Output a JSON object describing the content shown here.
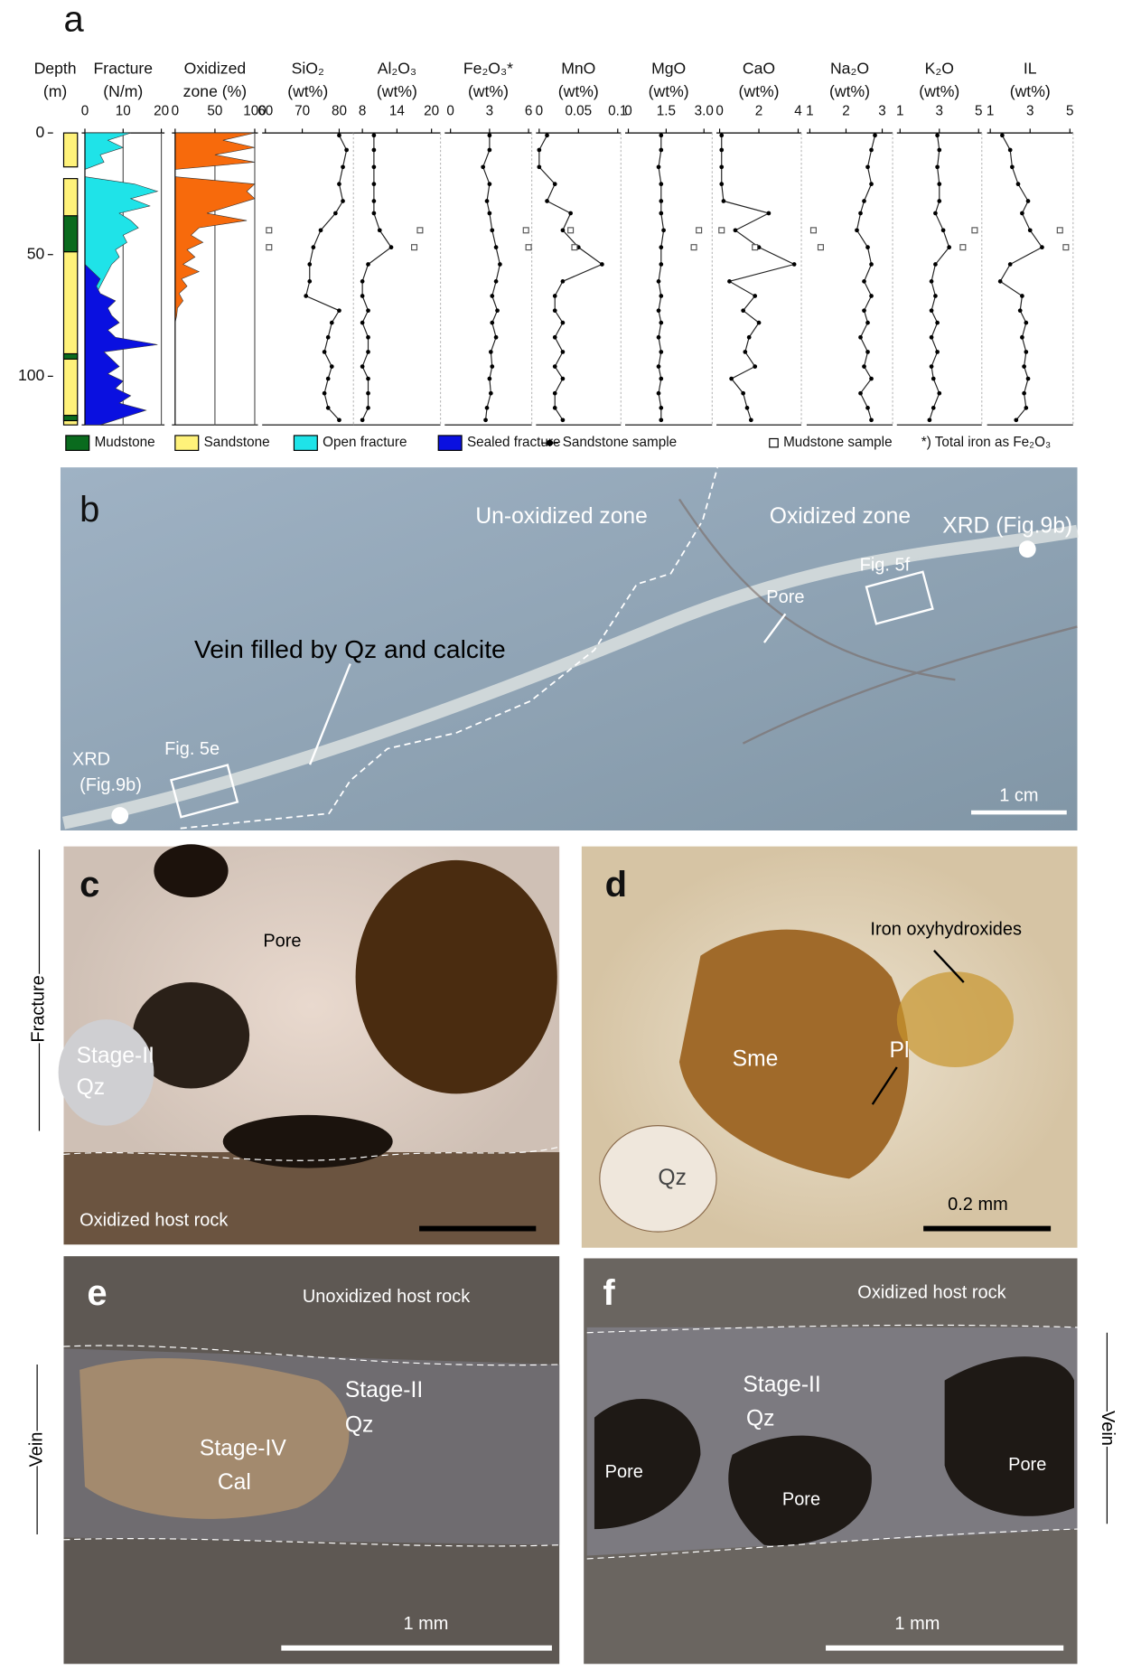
{
  "panel_labels": [
    "a",
    "b",
    "c",
    "d",
    "e",
    "f"
  ],
  "sandstone_depth": [
    1,
    7,
    14,
    21,
    28,
    33,
    40,
    47,
    54,
    61,
    67,
    73,
    78,
    84,
    90,
    96,
    101,
    107,
    113,
    118
  ],
  "mudstone_depth": [
    40,
    47
  ],
  "profile_depth": [
    0,
    3,
    6,
    9,
    12,
    15,
    18,
    21,
    24,
    27,
    30,
    33,
    36,
    39,
    42,
    45,
    48,
    51,
    54,
    57,
    60,
    63,
    66,
    69,
    72,
    75,
    78,
    81,
    84,
    87,
    90,
    93,
    96,
    99,
    102,
    105,
    108,
    111,
    114,
    117,
    120
  ],
  "depth_axis": {
    "title": "Depth",
    "unit": "(m)",
    "ylim": [
      0,
      120
    ],
    "yticks": [
      0,
      50,
      100
    ]
  },
  "chart_data": [
    {
      "type": "area",
      "title": "Fracture",
      "unit": "(N/m)",
      "xlim": [
        0,
        20
      ],
      "xticks": [
        0,
        10,
        20
      ],
      "series": [
        {
          "name": "Open fracture",
          "color": "#1fe3e8",
          "values": [
            12,
            6,
            10,
            4,
            5,
            0,
            0,
            13,
            19,
            12,
            17,
            9,
            12,
            14,
            10,
            11,
            8,
            9,
            7,
            6,
            5,
            4,
            3,
            2,
            1,
            0,
            0,
            0,
            0,
            0,
            0,
            0,
            0,
            0,
            0,
            0,
            0,
            0,
            0,
            0,
            0
          ]
        },
        {
          "name": "Sealed fracture",
          "color": "#0a10e0",
          "values": [
            0,
            0,
            0,
            0,
            0,
            0,
            0,
            0,
            0,
            0,
            0,
            0,
            0,
            0,
            0,
            0,
            0,
            0,
            0,
            2,
            4,
            3,
            4,
            8,
            6,
            7,
            9,
            6,
            8,
            19,
            5,
            7,
            9,
            6,
            10,
            8,
            12,
            9,
            16,
            10,
            4
          ]
        }
      ]
    },
    {
      "type": "area",
      "title": "Oxidized",
      "unit": "zone (%)",
      "xlim": [
        0,
        100
      ],
      "xticks": [
        0,
        50,
        100
      ],
      "series": [
        {
          "name": "Oxidized zone",
          "color": "#f76a0c",
          "values": [
            100,
            60,
            100,
            50,
            100,
            0,
            0,
            100,
            90,
            100,
            70,
            40,
            90,
            30,
            20,
            35,
            15,
            25,
            10,
            30,
            8,
            15,
            5,
            10,
            3,
            2,
            0,
            0,
            0,
            0,
            0,
            0,
            0,
            0,
            0,
            0,
            0,
            0,
            0,
            0,
            0
          ]
        }
      ]
    },
    {
      "type": "profile",
      "title": "SiO₂",
      "unit": "(wt%)",
      "xlim": [
        60,
        83
      ],
      "xticks": [
        60,
        70,
        80
      ],
      "values": [
        80,
        82,
        81,
        80,
        81,
        79,
        75,
        73,
        72,
        72,
        71,
        80,
        78,
        77,
        76,
        78,
        77,
        76,
        77,
        80
      ],
      "mudstone_values": [
        61,
        61
      ]
    },
    {
      "type": "profile",
      "title": "Al₂O₃",
      "unit": "(wt%)",
      "xlim": [
        7,
        21
      ],
      "xticks": [
        8,
        14,
        20
      ],
      "values": [
        10,
        10,
        10,
        10,
        10,
        10,
        11,
        13,
        9,
        8,
        8,
        9,
        8,
        9,
        9,
        8,
        9,
        9,
        9,
        8
      ],
      "mudstone_values": [
        18,
        17
      ]
    },
    {
      "type": "profile",
      "title": "Fe₂O₃*",
      "unit": "(wt%)",
      "xlim": [
        -0.2,
        6
      ],
      "xticks": [
        0,
        3,
        6
      ],
      "values": [
        3,
        3,
        2.5,
        3,
        2.8,
        3,
        3.2,
        3.5,
        3.8,
        3.5,
        3.2,
        3.6,
        3.2,
        3.5,
        3.1,
        3.2,
        3,
        3.1,
        2.8,
        2.7
      ],
      "mudstone_values": [
        5.8,
        6
      ]
    },
    {
      "type": "profile",
      "title": "MnO",
      "unit": "(wt%)",
      "xlim": [
        0,
        0.1
      ],
      "xticks": [
        0,
        0.05,
        0.1
      ],
      "values": [
        0.01,
        0,
        0,
        0.02,
        0.01,
        0.04,
        0.03,
        0.05,
        0.08,
        0.03,
        0.02,
        0.02,
        0.03,
        0.02,
        0.03,
        0.02,
        0.03,
        0.02,
        0.02,
        0.03
      ],
      "mudstone_values": [
        0.04,
        0.045
      ]
    },
    {
      "type": "profile",
      "title": "MgO",
      "unit": "(wt%)",
      "xlim": [
        0,
        3.2
      ],
      "xticks": [
        0,
        1.5,
        {
          "value": 3,
          "label": "3.0"
        }
      ],
      "values": [
        1.3,
        1.3,
        1.2,
        1.3,
        1.3,
        1.3,
        1.4,
        1.3,
        1.3,
        1.2,
        1.3,
        1.2,
        1.3,
        1.2,
        1.3,
        1.2,
        1.3,
        1.2,
        1.3,
        1.3
      ],
      "mudstone_values": [
        2.8,
        2.6
      ]
    },
    {
      "type": "profile",
      "title": "CaO",
      "unit": "(wt%)",
      "xlim": [
        0,
        4
      ],
      "xticks": [
        0,
        2,
        4
      ],
      "values": [
        0.1,
        0.1,
        0.1,
        0.1,
        0.2,
        2.5,
        0.8,
        2,
        3.8,
        0.5,
        1.8,
        1.2,
        2,
        1.5,
        1.3,
        1.8,
        0.6,
        1.2,
        1.4,
        1.6
      ],
      "mudstone_values": [
        0.1,
        1.8
      ]
    },
    {
      "type": "profile",
      "title": "Na₂O",
      "unit": "(wt%)",
      "xlim": [
        1,
        3.2
      ],
      "xticks": [
        1,
        2,
        3
      ],
      "values": [
        2.8,
        2.7,
        2.6,
        2.7,
        2.5,
        2.4,
        2.3,
        2.6,
        2.7,
        2.5,
        2.7,
        2.5,
        2.6,
        2.4,
        2.6,
        2.5,
        2.7,
        2.4,
        2.6,
        2.7
      ],
      "mudstone_values": [
        1.1,
        1.3
      ]
    },
    {
      "type": "profile",
      "title": "K₂O",
      "unit": "(wt%)",
      "xlim": [
        1,
        5
      ],
      "xticks": [
        1,
        3,
        5
      ],
      "values": [
        2.9,
        3,
        2.9,
        3,
        3,
        2.8,
        3.2,
        3.5,
        2.8,
        2.6,
        2.8,
        2.6,
        2.9,
        2.6,
        2.9,
        2.6,
        2.7,
        3,
        2.7,
        2.5
      ],
      "mudstone_values": [
        4.8,
        4.2
      ]
    },
    {
      "type": "profile",
      "title": "IL",
      "unit": "(wt%)",
      "xlim": [
        1,
        5
      ],
      "xticks": [
        1,
        3,
        5
      ],
      "values": [
        1.6,
        2,
        2.1,
        2.4,
        2.9,
        2.6,
        3,
        3.6,
        2,
        1.5,
        2.6,
        2.5,
        2.8,
        2.6,
        2.8,
        2.7,
        2.9,
        2.7,
        2.8,
        2.3
      ],
      "mudstone_values": [
        4.5,
        4.8
      ]
    }
  ],
  "legend": [
    {
      "name": "Mudstone",
      "color": "#0a6b1e"
    },
    {
      "name": "Sandstone",
      "color": "#fff27a"
    },
    {
      "name": "Open fracture",
      "color": "#1fe3e8"
    },
    {
      "name": "Sealed fracture",
      "color": "#0a10e0"
    },
    {
      "name": "Sandstone sample"
    },
    {
      "name": "Mudstone sample"
    },
    {
      "name": "*) Total iron as Fe₂O₃"
    }
  ],
  "photo_b": [
    "Un-oxidized zone",
    "Oxidized zone",
    "XRD (Fig.9b)",
    "Fig. 5f",
    "Pore",
    "Vein filled by Qz and calcite",
    "XRD",
    "(Fig.9b)",
    "Fig. 5e",
    "1 cm"
  ],
  "photo_c": [
    "Pore",
    "Fracture",
    "Stage-II",
    "Qz",
    "Oxidized host rock"
  ],
  "photo_d": [
    "Iron oxyhydroxides",
    "Sme",
    "Pl",
    "Qz",
    "0.2 mm"
  ],
  "photo_e": [
    "Unoxidized host rock",
    "Stage-II",
    "Qz",
    "Stage-IV",
    "Cal",
    "Vein",
    "1 mm"
  ],
  "photo_f": [
    "Oxidized host rock",
    "Stage-II",
    "Qz",
    "Pore",
    "Pore",
    "Pore",
    "Vein",
    "1 mm"
  ]
}
